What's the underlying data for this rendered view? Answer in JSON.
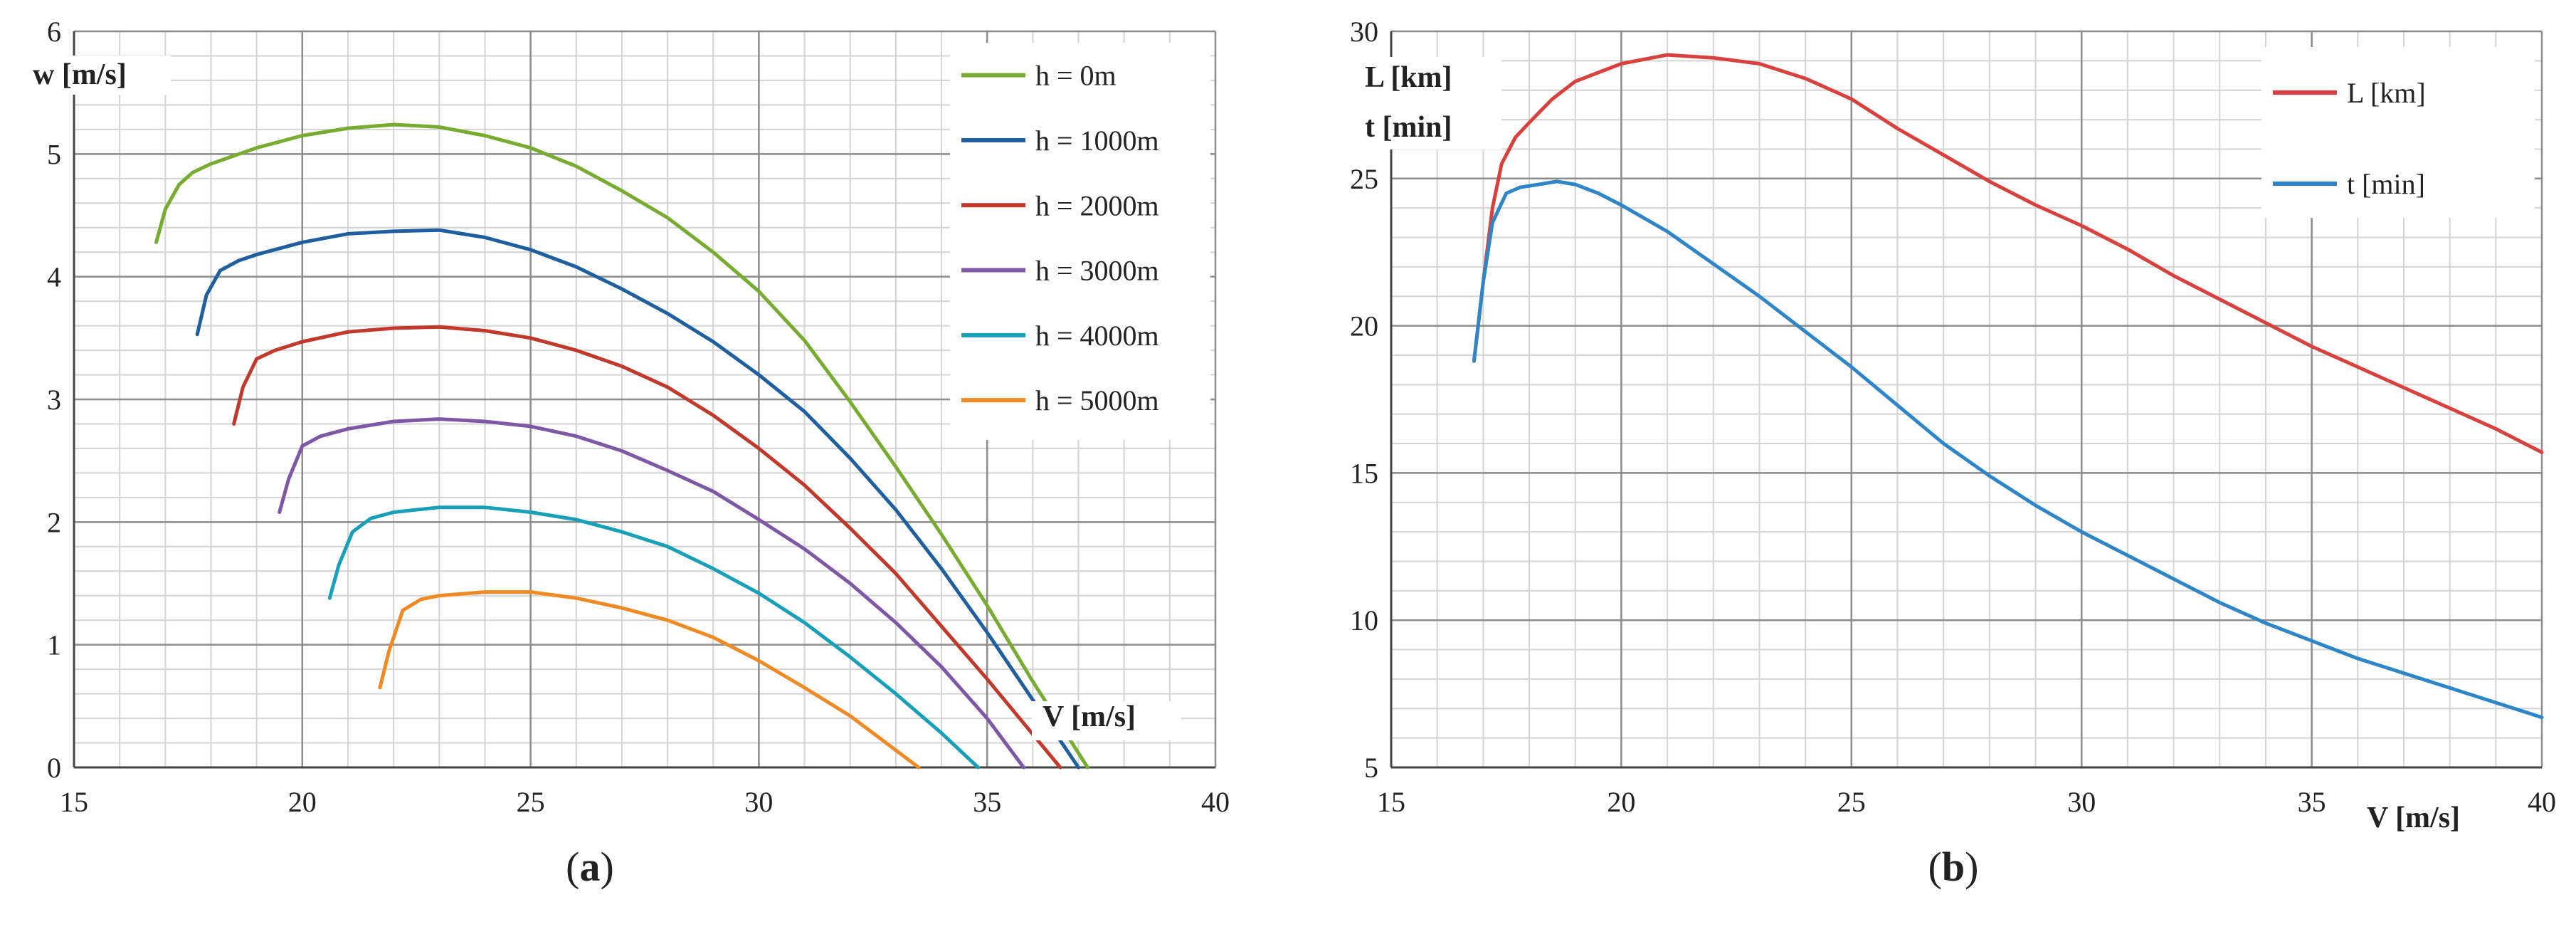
{
  "chart_data": [
    {
      "type": "line",
      "panel_label": "a",
      "xlabel": "V [m/s]",
      "ylabel": "w [m/s]",
      "xlim": [
        15,
        40
      ],
      "ylim": [
        0,
        6
      ],
      "xticks": [
        15,
        20,
        25,
        30,
        35,
        40
      ],
      "yticks": [
        0,
        1,
        2,
        3,
        4,
        5,
        6
      ],
      "grid": true,
      "legend_position": "top-right",
      "series": [
        {
          "name": "h = 0m",
          "color": "#77AC30",
          "x": [
            16.8,
            17.0,
            17.3,
            17.6,
            18.0,
            19.0,
            20.0,
            21.0,
            22.0,
            23.0,
            24.0,
            25.0,
            26.0,
            27.0,
            28.0,
            29.0,
            30.0,
            31.0,
            32.0,
            33.0,
            34.0,
            35.0,
            36.0,
            37.2
          ],
          "y": [
            4.28,
            4.55,
            4.75,
            4.85,
            4.92,
            5.05,
            5.15,
            5.21,
            5.24,
            5.22,
            5.15,
            5.05,
            4.9,
            4.7,
            4.48,
            4.2,
            3.88,
            3.48,
            2.98,
            2.45,
            1.9,
            1.32,
            0.7,
            0.0
          ]
        },
        {
          "name": "h = 1000m",
          "color": "#1F5FA0",
          "x": [
            17.7,
            17.9,
            18.2,
            18.6,
            19.0,
            20.0,
            21.0,
            22.0,
            23.0,
            24.0,
            25.0,
            26.0,
            27.0,
            28.0,
            29.0,
            30.0,
            31.0,
            32.0,
            33.0,
            34.0,
            35.0,
            36.0,
            37.0
          ],
          "y": [
            3.53,
            3.85,
            4.05,
            4.13,
            4.18,
            4.28,
            4.35,
            4.37,
            4.38,
            4.32,
            4.22,
            4.08,
            3.9,
            3.7,
            3.47,
            3.2,
            2.9,
            2.52,
            2.1,
            1.62,
            1.1,
            0.55,
            0.0
          ]
        },
        {
          "name": "h = 2000m",
          "color": "#C0392B",
          "x": [
            18.5,
            18.7,
            19.0,
            19.4,
            20.0,
            21.0,
            22.0,
            23.0,
            24.0,
            25.0,
            26.0,
            27.0,
            28.0,
            29.0,
            30.0,
            31.0,
            32.0,
            33.0,
            34.0,
            35.0,
            36.6
          ],
          "y": [
            2.8,
            3.1,
            3.33,
            3.4,
            3.47,
            3.55,
            3.58,
            3.59,
            3.56,
            3.5,
            3.4,
            3.27,
            3.1,
            2.87,
            2.6,
            2.3,
            1.95,
            1.58,
            1.15,
            0.72,
            0.0
          ]
        },
        {
          "name": "h = 3000m",
          "color": "#7E57A5",
          "x": [
            19.5,
            19.7,
            20.0,
            20.4,
            21.0,
            22.0,
            23.0,
            24.0,
            25.0,
            26.0,
            27.0,
            28.0,
            29.0,
            30.0,
            31.0,
            32.0,
            33.0,
            34.0,
            35.0,
            35.8
          ],
          "y": [
            2.08,
            2.35,
            2.62,
            2.7,
            2.76,
            2.82,
            2.84,
            2.82,
            2.78,
            2.7,
            2.58,
            2.42,
            2.25,
            2.02,
            1.78,
            1.5,
            1.18,
            0.82,
            0.4,
            0.0
          ]
        },
        {
          "name": "h = 4000m",
          "color": "#17A0B8",
          "x": [
            20.6,
            20.8,
            21.1,
            21.5,
            22.0,
            23.0,
            24.0,
            25.0,
            26.0,
            27.0,
            28.0,
            29.0,
            30.0,
            31.0,
            32.0,
            33.0,
            34.0,
            34.8
          ],
          "y": [
            1.38,
            1.65,
            1.92,
            2.03,
            2.08,
            2.12,
            2.12,
            2.08,
            2.02,
            1.92,
            1.8,
            1.62,
            1.42,
            1.18,
            0.9,
            0.6,
            0.28,
            0.0
          ]
        },
        {
          "name": "h = 5000m",
          "color": "#F08A24",
          "x": [
            21.7,
            21.9,
            22.2,
            22.6,
            23.0,
            24.0,
            25.0,
            26.0,
            27.0,
            28.0,
            29.0,
            30.0,
            31.0,
            32.0,
            33.0,
            33.5
          ],
          "y": [
            0.65,
            0.95,
            1.28,
            1.37,
            1.4,
            1.43,
            1.43,
            1.38,
            1.3,
            1.2,
            1.06,
            0.87,
            0.65,
            0.42,
            0.14,
            0.0
          ]
        }
      ]
    },
    {
      "type": "line",
      "panel_label": "b",
      "xlabel": "V [m/s]",
      "ylabel_lines": [
        "L [km]",
        "t [min]"
      ],
      "xlim": [
        15,
        40
      ],
      "ylim": [
        5,
        30
      ],
      "xticks": [
        15,
        20,
        25,
        30,
        35,
        40
      ],
      "yticks": [
        5,
        10,
        15,
        20,
        25,
        30
      ],
      "grid": true,
      "legend_position": "top-right",
      "series": [
        {
          "name": "L [km]",
          "color": "#D9413E",
          "x": [
            16.8,
            17.0,
            17.2,
            17.4,
            17.7,
            18.0,
            18.5,
            19.0,
            20.0,
            21.0,
            22.0,
            23.0,
            24.0,
            25.0,
            26.0,
            27.0,
            28.0,
            29.0,
            30.0,
            31.0,
            32.0,
            33.0,
            34.0,
            35.0,
            36.0,
            37.0,
            38.0,
            39.0,
            40.0
          ],
          "y": [
            18.8,
            21.5,
            24.0,
            25.5,
            26.4,
            26.9,
            27.7,
            28.3,
            28.9,
            29.2,
            29.1,
            28.9,
            28.4,
            27.7,
            26.7,
            25.8,
            24.9,
            24.1,
            23.4,
            22.6,
            21.7,
            20.9,
            20.1,
            19.3,
            18.6,
            17.9,
            17.2,
            16.5,
            15.7
          ]
        },
        {
          "name": "t [min]",
          "color": "#2E86C9",
          "x": [
            16.8,
            17.0,
            17.2,
            17.5,
            17.8,
            18.2,
            18.6,
            19.0,
            19.5,
            20.0,
            21.0,
            22.0,
            23.0,
            24.0,
            25.0,
            26.0,
            27.0,
            28.0,
            29.0,
            30.0,
            31.0,
            32.0,
            33.0,
            34.0,
            35.0,
            36.0,
            37.0,
            38.0,
            39.0,
            40.0
          ],
          "y": [
            18.8,
            21.5,
            23.5,
            24.5,
            24.7,
            24.8,
            24.9,
            24.8,
            24.5,
            24.1,
            23.2,
            22.1,
            21.0,
            19.8,
            18.6,
            17.3,
            16.0,
            14.9,
            13.9,
            13.0,
            12.2,
            11.4,
            10.6,
            9.9,
            9.3,
            8.7,
            8.2,
            7.7,
            7.2,
            6.7
          ]
        }
      ]
    }
  ]
}
